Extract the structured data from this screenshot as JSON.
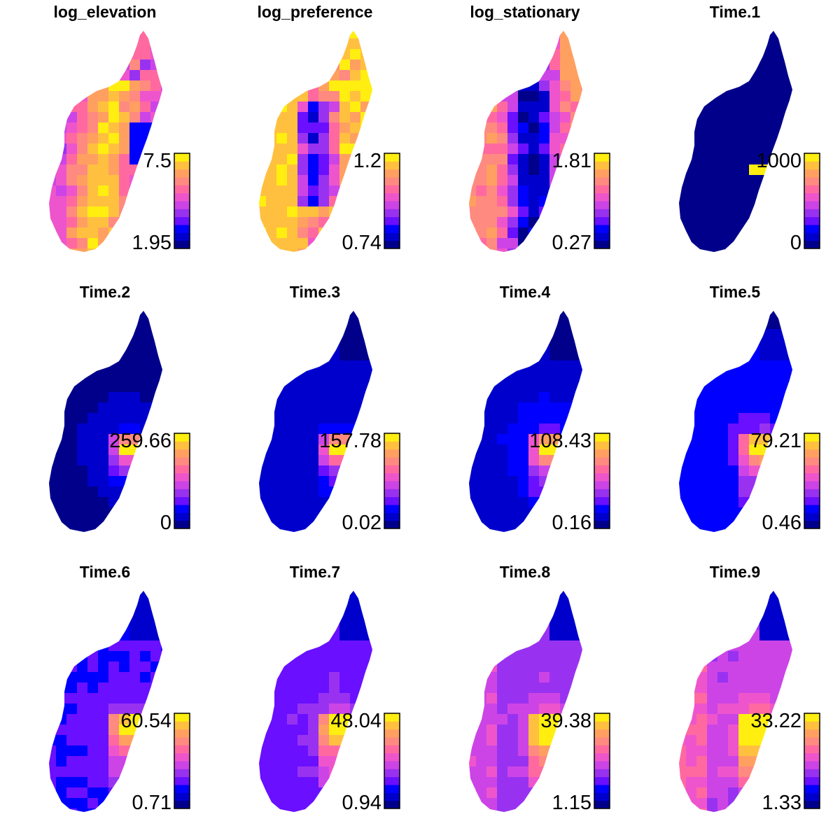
{
  "palette": [
    "#00008b",
    "#0000cd",
    "#0000ff",
    "#6a0fff",
    "#9932f0",
    "#cc44e6",
    "#ee55cc",
    "#ff69a0",
    "#ff8a80",
    "#ffa060",
    "#ffc040",
    "#ffee10"
  ],
  "panels": [
    {
      "title": "log_elevation",
      "legend_max": "7.5",
      "legend_min": "1.95",
      "pattern": "elevation"
    },
    {
      "title": "log_preference",
      "legend_max": "1.2",
      "legend_min": "0.74",
      "pattern": "preference"
    },
    {
      "title": "log_stationary",
      "legend_max": "1.81",
      "legend_min": "0.27",
      "pattern": "stationary"
    },
    {
      "title": "Time.1",
      "legend_max": "1000",
      "legend_min": "0",
      "pattern": "time",
      "spread": 0.0
    },
    {
      "title": "Time.2",
      "legend_max": "259.66",
      "legend_min": "0",
      "pattern": "time",
      "spread": 0.05
    },
    {
      "title": "Time.3",
      "legend_max": "157.78",
      "legend_min": "0.02",
      "pattern": "time",
      "spread": 0.1
    },
    {
      "title": "Time.4",
      "legend_max": "108.43",
      "legend_min": "0.16",
      "pattern": "time",
      "spread": 0.2
    },
    {
      "title": "Time.5",
      "legend_max": "79.21",
      "legend_min": "0.46",
      "pattern": "time",
      "spread": 0.3
    },
    {
      "title": "Time.6",
      "legend_max": "60.54",
      "legend_min": "0.71",
      "pattern": "time",
      "spread": 0.4
    },
    {
      "title": "Time.7",
      "legend_max": "48.04",
      "legend_min": "0.94",
      "pattern": "time",
      "spread": 0.5
    },
    {
      "title": "Time.8",
      "legend_max": "39.38",
      "legend_min": "1.15",
      "pattern": "time",
      "spread": 0.65
    },
    {
      "title": "Time.9",
      "legend_max": "33.22",
      "legend_min": "1.33",
      "pattern": "time",
      "spread": 0.8
    }
  ]
}
